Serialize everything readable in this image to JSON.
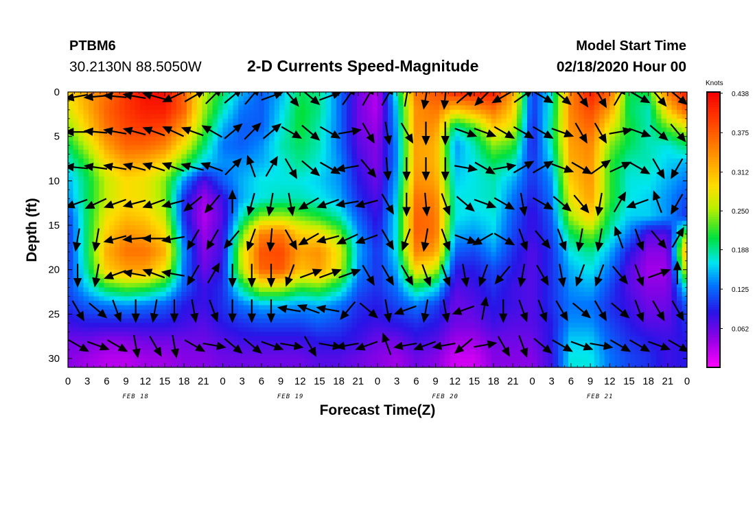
{
  "header": {
    "station": "PTBM6",
    "coords": "30.2130N 88.5050W",
    "title": "2-D Currents Speed-Magnitude",
    "model_label": "Model Start Time",
    "model_time": "02/18/2020 Hour 00"
  },
  "chart_data": {
    "type": "heatmap",
    "title": "2-D Currents Speed-Magnitude",
    "xlabel": "Forecast Time(Z)",
    "ylabel": "Depth (ft)",
    "x_tick_labels": [
      "0",
      "3",
      "6",
      "9",
      "12",
      "15",
      "18",
      "21",
      "0",
      "3",
      "6",
      "9",
      "12",
      "15",
      "18",
      "21",
      "0",
      "3",
      "6",
      "9",
      "12",
      "15",
      "18",
      "21",
      "0",
      "3",
      "6",
      "9",
      "12",
      "15",
      "18",
      "21",
      "0"
    ],
    "day_labels": [
      "FEB 18",
      "FEB 19",
      "FEB 20",
      "FEB 21"
    ],
    "x_range_hours": [
      0,
      96
    ],
    "y_ticks": [
      0,
      5,
      10,
      15,
      20,
      25,
      30
    ],
    "y_range_ft": [
      0,
      31
    ],
    "y_inverted": true,
    "colorbar": {
      "unit": "Knots",
      "ticks": [
        "0.438",
        "0.375",
        "0.312",
        "0.250",
        "0.188",
        "0.125",
        "0.062"
      ],
      "range": [
        0,
        0.44
      ],
      "colormap": "magenta-blue-cyan-green-yellow-orange-red"
    },
    "speed_grid": {
      "description": "current speed (knots); rows = depth levels, cols = forecast hour",
      "depths_ft": [
        0,
        2,
        4,
        6,
        8,
        10,
        12,
        14,
        16,
        18,
        20,
        22,
        24,
        26,
        28,
        30
      ],
      "hours": [
        0,
        3,
        6,
        9,
        12,
        15,
        18,
        21,
        24,
        27,
        30,
        33,
        36,
        39,
        42,
        45,
        48,
        51,
        54,
        57,
        60,
        63,
        66,
        69,
        72,
        75,
        78,
        81,
        84,
        87,
        90,
        93,
        96
      ],
      "values": [
        [
          0.29,
          0.33,
          0.36,
          0.4,
          0.43,
          0.43,
          0.37,
          0.26,
          0.2,
          0.15,
          0.12,
          0.15,
          0.2,
          0.19,
          0.13,
          0.06,
          0.03,
          0.18,
          0.36,
          0.38,
          0.41,
          0.42,
          0.42,
          0.33,
          0.1,
          0.17,
          0.35,
          0.42,
          0.37,
          0.2,
          0.21,
          0.36,
          0.42
        ],
        [
          0.27,
          0.32,
          0.37,
          0.4,
          0.42,
          0.42,
          0.37,
          0.25,
          0.18,
          0.13,
          0.12,
          0.16,
          0.21,
          0.19,
          0.13,
          0.06,
          0.03,
          0.16,
          0.34,
          0.36,
          0.3,
          0.33,
          0.36,
          0.3,
          0.1,
          0.18,
          0.35,
          0.39,
          0.33,
          0.2,
          0.18,
          0.3,
          0.38
        ],
        [
          0.24,
          0.3,
          0.36,
          0.39,
          0.4,
          0.39,
          0.33,
          0.23,
          0.15,
          0.12,
          0.12,
          0.17,
          0.21,
          0.18,
          0.13,
          0.06,
          0.04,
          0.15,
          0.34,
          0.34,
          0.18,
          0.22,
          0.3,
          0.27,
          0.09,
          0.19,
          0.34,
          0.37,
          0.28,
          0.21,
          0.18,
          0.23,
          0.27
        ],
        [
          0.2,
          0.26,
          0.33,
          0.37,
          0.37,
          0.35,
          0.28,
          0.2,
          0.13,
          0.12,
          0.14,
          0.18,
          0.2,
          0.18,
          0.13,
          0.07,
          0.05,
          0.14,
          0.33,
          0.32,
          0.14,
          0.18,
          0.24,
          0.22,
          0.09,
          0.18,
          0.33,
          0.35,
          0.24,
          0.2,
          0.18,
          0.17,
          0.2
        ],
        [
          0.17,
          0.22,
          0.29,
          0.33,
          0.32,
          0.29,
          0.22,
          0.16,
          0.14,
          0.14,
          0.15,
          0.17,
          0.19,
          0.17,
          0.14,
          0.08,
          0.05,
          0.14,
          0.33,
          0.32,
          0.15,
          0.17,
          0.2,
          0.18,
          0.1,
          0.16,
          0.32,
          0.34,
          0.22,
          0.18,
          0.18,
          0.16,
          0.15
        ],
        [
          0.15,
          0.2,
          0.26,
          0.29,
          0.28,
          0.24,
          0.14,
          0.07,
          0.12,
          0.15,
          0.17,
          0.17,
          0.17,
          0.16,
          0.14,
          0.09,
          0.06,
          0.15,
          0.34,
          0.33,
          0.16,
          0.17,
          0.18,
          0.15,
          0.1,
          0.14,
          0.3,
          0.34,
          0.22,
          0.17,
          0.17,
          0.15,
          0.13
        ],
        [
          0.14,
          0.2,
          0.26,
          0.29,
          0.28,
          0.24,
          0.1,
          0.04,
          0.08,
          0.15,
          0.17,
          0.18,
          0.18,
          0.17,
          0.15,
          0.1,
          0.07,
          0.16,
          0.36,
          0.35,
          0.17,
          0.17,
          0.18,
          0.13,
          0.09,
          0.13,
          0.28,
          0.33,
          0.22,
          0.17,
          0.16,
          0.14,
          0.11
        ],
        [
          0.11,
          0.2,
          0.28,
          0.31,
          0.3,
          0.26,
          0.1,
          0.03,
          0.07,
          0.18,
          0.24,
          0.25,
          0.23,
          0.21,
          0.18,
          0.12,
          0.08,
          0.17,
          0.37,
          0.36,
          0.17,
          0.16,
          0.17,
          0.12,
          0.08,
          0.12,
          0.25,
          0.3,
          0.2,
          0.16,
          0.16,
          0.14,
          0.1
        ],
        [
          0.1,
          0.2,
          0.3,
          0.34,
          0.33,
          0.29,
          0.12,
          0.04,
          0.08,
          0.23,
          0.35,
          0.36,
          0.3,
          0.29,
          0.24,
          0.14,
          0.09,
          0.17,
          0.37,
          0.36,
          0.15,
          0.14,
          0.16,
          0.11,
          0.08,
          0.11,
          0.2,
          0.24,
          0.18,
          0.13,
          0.07,
          0.07,
          0.25
        ],
        [
          0.1,
          0.2,
          0.32,
          0.36,
          0.36,
          0.32,
          0.14,
          0.05,
          0.08,
          0.27,
          0.38,
          0.39,
          0.33,
          0.34,
          0.28,
          0.15,
          0.1,
          0.17,
          0.35,
          0.33,
          0.12,
          0.11,
          0.14,
          0.1,
          0.07,
          0.1,
          0.17,
          0.19,
          0.15,
          0.09,
          0.05,
          0.05,
          0.34
        ],
        [
          0.1,
          0.19,
          0.3,
          0.33,
          0.33,
          0.28,
          0.13,
          0.06,
          0.09,
          0.26,
          0.37,
          0.38,
          0.31,
          0.33,
          0.27,
          0.14,
          0.1,
          0.15,
          0.29,
          0.26,
          0.09,
          0.09,
          0.11,
          0.09,
          0.07,
          0.1,
          0.15,
          0.17,
          0.13,
          0.07,
          0.04,
          0.04,
          0.28
        ],
        [
          0.11,
          0.16,
          0.21,
          0.23,
          0.22,
          0.19,
          0.12,
          0.08,
          0.1,
          0.19,
          0.26,
          0.26,
          0.22,
          0.23,
          0.19,
          0.12,
          0.1,
          0.13,
          0.2,
          0.17,
          0.07,
          0.08,
          0.1,
          0.08,
          0.07,
          0.1,
          0.14,
          0.15,
          0.11,
          0.07,
          0.05,
          0.05,
          0.18
        ],
        [
          0.1,
          0.12,
          0.13,
          0.14,
          0.13,
          0.12,
          0.09,
          0.08,
          0.1,
          0.13,
          0.15,
          0.15,
          0.14,
          0.15,
          0.13,
          0.1,
          0.09,
          0.11,
          0.13,
          0.11,
          0.06,
          0.07,
          0.09,
          0.08,
          0.07,
          0.1,
          0.13,
          0.13,
          0.1,
          0.08,
          0.06,
          0.06,
          0.12
        ],
        [
          0.08,
          0.09,
          0.09,
          0.09,
          0.09,
          0.09,
          0.08,
          0.07,
          0.09,
          0.1,
          0.11,
          0.11,
          0.11,
          0.12,
          0.11,
          0.09,
          0.08,
          0.09,
          0.1,
          0.09,
          0.06,
          0.06,
          0.08,
          0.07,
          0.07,
          0.09,
          0.14,
          0.14,
          0.11,
          0.09,
          0.07,
          0.07,
          0.1
        ],
        [
          0.06,
          0.06,
          0.05,
          0.05,
          0.06,
          0.06,
          0.06,
          0.06,
          0.07,
          0.08,
          0.08,
          0.08,
          0.08,
          0.09,
          0.09,
          0.08,
          0.06,
          0.06,
          0.08,
          0.07,
          0.04,
          0.04,
          0.06,
          0.06,
          0.06,
          0.09,
          0.16,
          0.16,
          0.12,
          0.1,
          0.09,
          0.08,
          0.09
        ],
        [
          0.05,
          0.04,
          0.03,
          0.03,
          0.04,
          0.04,
          0.05,
          0.05,
          0.06,
          0.06,
          0.06,
          0.06,
          0.06,
          0.07,
          0.07,
          0.06,
          0.05,
          0.04,
          0.06,
          0.05,
          0.02,
          0.02,
          0.05,
          0.05,
          0.05,
          0.08,
          0.17,
          0.17,
          0.13,
          0.11,
          0.1,
          0.08,
          0.09
        ]
      ]
    },
    "vectors": {
      "description": "current direction arrows (degrees, math convention: 0=east, 90=north, i.e. up on the plot)",
      "depths_ft": [
        0.5,
        4.5,
        8.5,
        12.5,
        16.5,
        20.5,
        24.5,
        28.5
      ],
      "hours": [
        1.5,
        4.5,
        7.5,
        10.5,
        13.5,
        16.5,
        19.5,
        22.5,
        25.5,
        28.5,
        31.5,
        34.5,
        37.5,
        40.5,
        43.5,
        46.5,
        49.5,
        52.5,
        55.5,
        58.5,
        61.5,
        64.5,
        67.5,
        70.5,
        73.5,
        76.5,
        79.5,
        82.5,
        85.5,
        88.5,
        91.5,
        94.5
      ],
      "directions_deg": [
        [
          190,
          185,
          175,
          170,
          165,
          205,
          30,
          45,
          40,
          50,
          20,
          310,
          320,
          20,
          55,
          60,
          60,
          80,
          260,
          265,
          40,
          225,
          210,
          35,
          330,
          320,
          305,
          300,
          60,
          330,
          310,
          320
        ],
        [
          180,
          175,
          170,
          165,
          160,
          155,
          160,
          150,
          40,
          45,
          40,
          330,
          320,
          330,
          10,
          300,
          280,
          300,
          270,
          270,
          340,
          340,
          330,
          330,
          330,
          340,
          300,
          300,
          10,
          340,
          320,
          310
        ],
        [
          175,
          172,
          170,
          165,
          162,
          160,
          165,
          160,
          45,
          110,
          60,
          300,
          320,
          330,
          190,
          310,
          275,
          270,
          270,
          270,
          350,
          330,
          10,
          30,
          30,
          340,
          330,
          35,
          25,
          330,
          300,
          240
        ],
        [
          200,
          205,
          200,
          195,
          200,
          195,
          220,
          230,
          90,
          255,
          260,
          280,
          210,
          200,
          190,
          195,
          300,
          270,
          275,
          290,
          320,
          340,
          330,
          280,
          330,
          320,
          310,
          260,
          60,
          200,
          110,
          240
        ],
        [
          260,
          260,
          195,
          185,
          180,
          190,
          240,
          240,
          230,
          250,
          265,
          300,
          210,
          195,
          205,
          200,
          300,
          250,
          260,
          290,
          340,
          210,
          330,
          290,
          310,
          290,
          260,
          260,
          110,
          290,
          310,
          60
        ],
        [
          270,
          260,
          200,
          170,
          160,
          170,
          240,
          60,
          270,
          270,
          270,
          250,
          20,
          20,
          20,
          300,
          300,
          300,
          290,
          290,
          280,
          250,
          230,
          260,
          300,
          280,
          250,
          250,
          310,
          290,
          20,
          90
        ],
        [
          300,
          320,
          290,
          270,
          260,
          270,
          280,
          290,
          270,
          270,
          270,
          170,
          160,
          170,
          230,
          320,
          280,
          200,
          260,
          280,
          200,
          80,
          270,
          290,
          290,
          300,
          320,
          300,
          320,
          290,
          300,
          300
        ],
        [
          330,
          340,
          330,
          280,
          300,
          280,
          330,
          350,
          320,
          320,
          340,
          350,
          300,
          350,
          190,
          200,
          110,
          190,
          200,
          190,
          220,
          10,
          300,
          290,
          320,
          330,
          340,
          350,
          330,
          330,
          340,
          330
        ]
      ]
    }
  }
}
